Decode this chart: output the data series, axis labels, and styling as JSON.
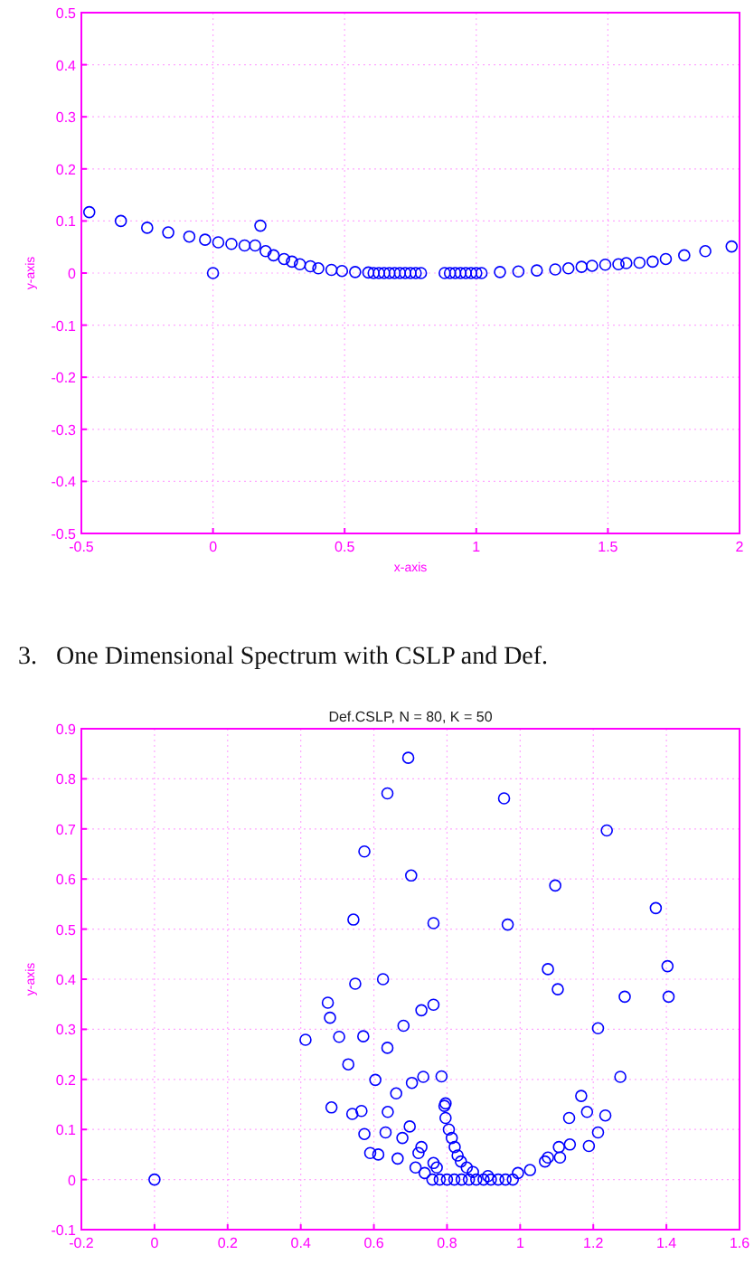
{
  "chart_data": [
    {
      "type": "scatter",
      "xlabel": "x-axis",
      "ylabel": "y-axis",
      "xlim": [
        -0.5,
        2
      ],
      "xticks": [
        -0.5,
        0,
        0.5,
        1,
        1.5,
        2
      ],
      "ylim": [
        -0.5,
        0.5
      ],
      "yticks": [
        -0.5,
        -0.4,
        -0.3,
        -0.2,
        -0.1,
        0,
        0.1,
        0.2,
        0.3,
        0.4,
        0.5
      ],
      "grid": true,
      "marker": "circle",
      "series": [
        {
          "color": "#0000ff",
          "x": [
            -0.47,
            -0.35,
            -0.25,
            -0.17,
            -0.09,
            -0.03,
            0.02,
            0.07,
            0.12,
            0.16,
            0,
            0.18,
            0.2,
            0.23,
            0.27,
            0.3,
            0.33,
            0.37,
            0.4,
            0.45,
            0.49,
            0.54,
            0.59,
            0.61,
            0.63,
            0.65,
            0.67,
            0.69,
            0.71,
            0.73,
            0.75,
            0.77,
            0.79,
            0.88,
            0.9,
            0.92,
            0.94,
            0.96,
            0.98,
            1,
            1.02,
            1.09,
            1.16,
            1.23,
            1.3,
            1.35,
            1.4,
            1.44,
            1.49,
            1.54,
            1.57,
            1.62,
            1.67,
            1.72,
            1.79,
            1.87,
            1.97
          ],
          "values": [
            0.117,
            0.1,
            0.087,
            0.078,
            0.07,
            0.064,
            0.059,
            0.056,
            0.053,
            0.053,
            0,
            0.091,
            0.042,
            0.034,
            0.027,
            0.022,
            0.017,
            0.013,
            0.009,
            0.006,
            0.004,
            0.002,
            0.001,
            0,
            0,
            0,
            0,
            0,
            0,
            0,
            0,
            0,
            0,
            0,
            0,
            0,
            0,
            0,
            0,
            0,
            0,
            0.002,
            0.003,
            0.005,
            0.007,
            0.009,
            0.012,
            0.014,
            0.016,
            0.017,
            0.019,
            0.02,
            0.022,
            0.027,
            0.034,
            0.042,
            0.051
          ]
        }
      ]
    },
    {
      "type": "other",
      "title": "3.   One Dimensional Spectrum with CSLP and Def."
    },
    {
      "type": "scatter",
      "title": "Def.CSLP, N = 80, K = 50",
      "ylabel": "y-axis",
      "xlim": [
        -0.2,
        1.6
      ],
      "xticks": [
        -0.2,
        0,
        0.2,
        0.4,
        0.6,
        0.8,
        1,
        1.2,
        1.4,
        1.6
      ],
      "ylim": [
        -0.1,
        0.9
      ],
      "yticks": [
        -0.1,
        0,
        0.1,
        0.2,
        0.3,
        0.4,
        0.5,
        0.6,
        0.7,
        0.8,
        0.9
      ],
      "grid": true,
      "marker": "circle",
      "series": [
        {
          "color": "#0000ff",
          "x": [
            0,
            0.694,
            0.637,
            0.956,
            1.237,
            0.574,
            0.702,
            1.096,
            1.371,
            0.544,
            0.763,
            0.966,
            1.076,
            1.403,
            0.549,
            0.625,
            1.103,
            1.286,
            1.406,
            0.474,
            0.48,
            0.73,
            0.763,
            0.681,
            1.213,
            0.505,
            0.571,
            0.413,
            0.637,
            0.53,
            1.274,
            0.604,
            0.704,
            0.735,
            0.785,
            0.661,
            0.566,
            0.484,
            0.541,
            0.638,
            0.793,
            1.167,
            1.134,
            1.183,
            1.233,
            1.213,
            1.188,
            1.136,
            1.106,
            1.068,
            1.109,
            1.027,
            0.994,
            1.076,
            0.574,
            0.59,
            0.612,
            0.632,
            0.678,
            0.665,
            0.698,
            0.722,
            0.73,
            0.763,
            0.772,
            0.714,
            0.739,
            0.796,
            0.796,
            0.805,
            0.813,
            0.821,
            0.829,
            0.838,
            0.854,
            0.871,
            0.912,
            0.76,
            0.78,
            0.8,
            0.82,
            0.84,
            0.86,
            0.88,
            0.9,
            0.92,
            0.94,
            0.96,
            0.98
          ],
          "values": [
            0,
            0.842,
            0.771,
            0.761,
            0.697,
            0.655,
            0.607,
            0.587,
            0.542,
            0.519,
            0.512,
            0.509,
            0.42,
            0.426,
            0.391,
            0.4,
            0.38,
            0.365,
            0.365,
            0.353,
            0.323,
            0.338,
            0.349,
            0.307,
            0.302,
            0.285,
            0.286,
            0.279,
            0.263,
            0.23,
            0.205,
            0.199,
            0.193,
            0.205,
            0.206,
            0.172,
            0.137,
            0.144,
            0.131,
            0.135,
            0.147,
            0.167,
            0.123,
            0.135,
            0.128,
            0.094,
            0.067,
            0.07,
            0.065,
            0.036,
            0.044,
            0.019,
            0.013,
            0.044,
            0.091,
            0.053,
            0.05,
            0.094,
            0.083,
            0.042,
            0.106,
            0.053,
            0.065,
            0.033,
            0.024,
            0.024,
            0.013,
            0.152,
            0.123,
            0.1,
            0.083,
            0.065,
            0.048,
            0.036,
            0.024,
            0.015,
            0.007,
            0,
            0,
            0,
            0,
            0,
            0,
            0,
            0,
            0,
            0,
            0,
            0
          ]
        }
      ]
    }
  ]
}
